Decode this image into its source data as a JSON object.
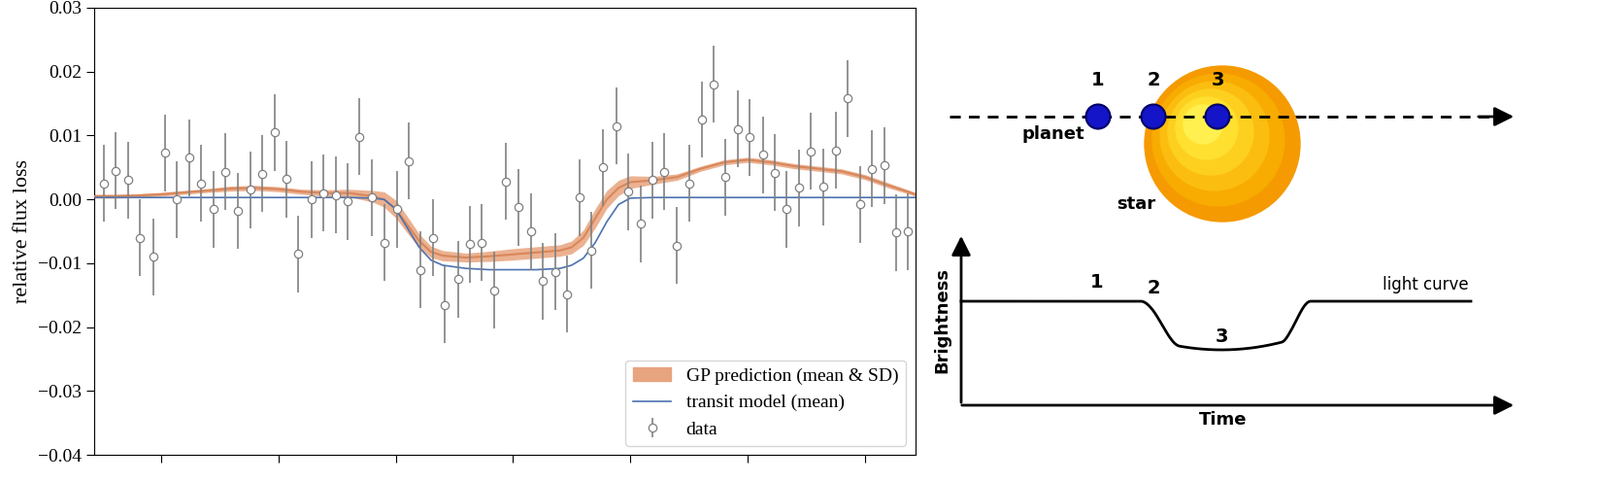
{
  "chart_data": {
    "type": "scatter",
    "y_label": "relative flux loss",
    "xlim": [
      -5.7,
      64.3
    ],
    "xticks": [
      0,
      10,
      20,
      30,
      40,
      50,
      60
    ],
    "ylim": [
      -0.04,
      0.03
    ],
    "yticks": [
      {
        "value": -0.04,
        "label": "−0.04"
      },
      {
        "value": -0.03,
        "label": "−0.03"
      },
      {
        "value": -0.02,
        "label": "−0.02"
      },
      {
        "value": -0.01,
        "label": "−0.01"
      },
      {
        "value": 0,
        "label": "0.00"
      },
      {
        "value": 0.01,
        "label": "0.01"
      },
      {
        "value": 0.02,
        "label": "0.02"
      },
      {
        "value": 0.03,
        "label": "0.03"
      }
    ],
    "tick_labels": "y",
    "grid": false,
    "legend": "lower right",
    "series": [
      {
        "name": "GP prediction (mean & SD)",
        "type": "band",
        "color": "#e8a47e",
        "x": [
          -5.7,
          -4,
          -2,
          0,
          2,
          4,
          6,
          8,
          10,
          12,
          14,
          16,
          18,
          19,
          20,
          21,
          22,
          23,
          24,
          26,
          28,
          30,
          32,
          34,
          35,
          36,
          37,
          38,
          39,
          40,
          42,
          44,
          46,
          48,
          50,
          52,
          54,
          56,
          58,
          60,
          62,
          64,
          64.3
        ],
        "values": [
          0.0005,
          0.0005,
          0.0006,
          0.0008,
          0.0011,
          0.0014,
          0.0017,
          0.0018,
          0.0016,
          0.0012,
          0.001,
          0.001,
          0.0005,
          0.0,
          -0.0015,
          -0.004,
          -0.0065,
          -0.0082,
          -0.0088,
          -0.0091,
          -0.0089,
          -0.0086,
          -0.0083,
          -0.008,
          -0.0075,
          -0.006,
          -0.003,
          0.0,
          0.0018,
          0.0027,
          0.003,
          0.0035,
          0.0048,
          0.0058,
          0.0062,
          0.0058,
          0.0052,
          0.0048,
          0.0044,
          0.0035,
          0.0022,
          0.001,
          0.0008
        ],
        "sd": [
          0.0003,
          0.0003,
          0.0003,
          0.0003,
          0.0003,
          0.0003,
          0.0004,
          0.0004,
          0.0004,
          0.0004,
          0.0005,
          0.0006,
          0.0009,
          0.0012,
          0.0014,
          0.0013,
          0.0011,
          0.0009,
          0.0008,
          0.0007,
          0.0008,
          0.0009,
          0.0009,
          0.0009,
          0.001,
          0.0012,
          0.0015,
          0.0014,
          0.0012,
          0.001,
          0.0006,
          0.0005,
          0.0004,
          0.0004,
          0.0004,
          0.0004,
          0.0004,
          0.0004,
          0.0004,
          0.0004,
          0.0004,
          0.0003,
          0.0003
        ]
      },
      {
        "name": "transit model (mean)",
        "type": "line",
        "color": "#4c72b0",
        "x": [
          -5.7,
          -4,
          -2,
          0,
          2,
          4,
          6,
          8,
          10,
          12,
          14,
          16,
          18,
          19,
          20,
          21,
          22,
          23,
          24,
          26,
          28,
          30,
          32,
          34,
          35,
          36,
          37,
          38,
          39,
          40,
          42,
          44,
          46,
          48,
          50,
          52,
          54,
          56,
          58,
          60,
          62,
          64,
          64.3
        ],
        "values": [
          0.0003,
          0.0003,
          0.0003,
          0.0003,
          0.0003,
          0.0003,
          0.0003,
          0.0003,
          0.0003,
          0.0003,
          0.0003,
          0.0003,
          0.0002,
          0.0,
          -0.0015,
          -0.0045,
          -0.0075,
          -0.0095,
          -0.0103,
          -0.0108,
          -0.011,
          -0.011,
          -0.011,
          -0.0108,
          -0.0103,
          -0.0092,
          -0.0068,
          -0.0035,
          -0.0008,
          0.0002,
          0.0003,
          0.0003,
          0.0003,
          0.0003,
          0.0003,
          0.0003,
          0.0003,
          0.0003,
          0.0003,
          0.0003,
          0.0003,
          0.0003,
          0.0003
        ]
      },
      {
        "name": "data",
        "type": "scatter",
        "color": "#808080",
        "marker": "o",
        "x": [
          -4.9,
          -3.9,
          -2.8,
          -1.8,
          -0.7,
          0.3,
          1.3,
          2.4,
          3.4,
          4.5,
          5.5,
          6.5,
          7.6,
          8.6,
          9.7,
          10.7,
          11.7,
          12.8,
          13.8,
          14.9,
          15.9,
          16.9,
          18.0,
          19.0,
          20.1,
          21.1,
          22.1,
          23.2,
          24.2,
          25.3,
          26.3,
          27.3,
          28.4,
          29.4,
          30.5,
          31.5,
          32.5,
          33.6,
          34.6,
          35.7,
          36.7,
          37.7,
          38.8,
          39.8,
          40.9,
          41.9,
          42.9,
          44.0,
          45.0,
          46.1,
          47.1,
          48.1,
          49.2,
          50.2,
          51.3,
          52.3,
          53.3,
          54.4,
          55.4,
          56.5,
          57.5,
          58.5,
          59.6,
          60.6,
          61.7,
          62.7,
          63.7
        ],
        "values": [
          0.0025,
          0.0045,
          0.003,
          -0.006,
          -0.009,
          0.0073,
          0.0,
          0.0065,
          0.0025,
          -0.0015,
          0.0043,
          -0.0018,
          0.0015,
          0.004,
          0.0105,
          0.0032,
          -0.0085,
          0.0,
          0.001,
          0.0007,
          -0.0003,
          0.0098,
          0.0003,
          -0.0068,
          -0.0015,
          0.006,
          -0.011,
          -0.006,
          -0.0165,
          -0.0125,
          -0.007,
          -0.0068,
          -0.0142,
          0.0028,
          -0.0012,
          -0.005,
          -0.0128,
          -0.0113,
          -0.0148,
          0.0003,
          -0.008,
          0.005,
          0.0115,
          0.0012,
          -0.0038,
          0.003,
          0.0043,
          -0.0072,
          0.0025,
          0.0125,
          0.018,
          0.0035,
          0.011,
          0.0097,
          0.007,
          0.0042,
          -0.0015,
          0.0018,
          0.0075,
          0.002,
          0.0077,
          0.0158,
          -0.0008,
          0.0048,
          0.0053,
          -0.0052,
          -0.005
        ],
        "errors": [
          0.006,
          0.006,
          0.006,
          0.006,
          0.006,
          0.006,
          0.006,
          0.006,
          0.006,
          0.006,
          0.006,
          0.006,
          0.006,
          0.006,
          0.006,
          0.006,
          0.006,
          0.006,
          0.006,
          0.006,
          0.006,
          0.006,
          0.006,
          0.006,
          0.006,
          0.006,
          0.006,
          0.006,
          0.006,
          0.006,
          0.006,
          0.006,
          0.006,
          0.006,
          0.006,
          0.006,
          0.006,
          0.006,
          0.006,
          0.006,
          0.006,
          0.006,
          0.006,
          0.006,
          0.006,
          0.006,
          0.006,
          0.006,
          0.006,
          0.006,
          0.006,
          0.006,
          0.006,
          0.006,
          0.006,
          0.006,
          0.006,
          0.006,
          0.006,
          0.006,
          0.006,
          0.006,
          0.006,
          0.006,
          0.006,
          0.006,
          0.006
        ]
      }
    ]
  },
  "diagram": {
    "positions": [
      "1",
      "2",
      "3"
    ],
    "planet_label": "planet",
    "star_label": "star",
    "curve_label": "light curve",
    "y_label": "Brightness",
    "x_label": "Time"
  }
}
